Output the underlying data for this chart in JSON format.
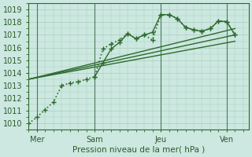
{
  "xlabel": "Pression niveau de la mer( hPa )",
  "ylim": [
    1009.5,
    1019.5
  ],
  "xlim": [
    0,
    80
  ],
  "bg_color": "#cce8e0",
  "grid_color": "#aaccbb",
  "line_color": "#2d6a2d",
  "xtick_positions": [
    3,
    24,
    48,
    72
  ],
  "xtick_labels": [
    "Mer",
    "Sam",
    "Jeu",
    "Ven"
  ],
  "ytick_positions": [
    1010,
    1011,
    1012,
    1013,
    1014,
    1015,
    1016,
    1017,
    1018,
    1019
  ],
  "vline_positions": [
    3,
    24,
    48,
    72
  ],
  "series": [
    {
      "x": [
        0,
        3,
        6,
        9,
        12,
        15,
        18,
        21,
        24,
        27,
        30,
        33,
        36,
        39,
        42,
        45,
        48,
        51,
        54,
        57,
        60,
        63,
        66,
        69,
        72,
        75
      ],
      "y": [
        1010.0,
        1010.5,
        1011.1,
        1011.7,
        1013.0,
        1013.2,
        1013.3,
        1013.5,
        1013.7,
        1015.9,
        1016.3,
        1016.6,
        1017.1,
        1016.7,
        1017.0,
        1016.6,
        1018.6,
        1018.6,
        1018.3,
        1017.6,
        1017.4,
        1017.3,
        1017.5,
        1018.1,
        1018.05,
        1017.0
      ],
      "marker": "+",
      "markersize": 4,
      "linestyle": ":",
      "linewidth": 1.2
    },
    {
      "x": [
        0,
        75
      ],
      "y": [
        1013.5,
        1017.5
      ],
      "marker": null,
      "markersize": 0,
      "linestyle": "-",
      "linewidth": 1.0
    },
    {
      "x": [
        0,
        75
      ],
      "y": [
        1013.5,
        1017.0
      ],
      "marker": null,
      "markersize": 0,
      "linestyle": "-",
      "linewidth": 1.0
    },
    {
      "x": [
        0,
        75
      ],
      "y": [
        1013.5,
        1016.5
      ],
      "marker": null,
      "markersize": 0,
      "linestyle": "-",
      "linewidth": 1.0
    },
    {
      "x": [
        24,
        27,
        30,
        33,
        36,
        39,
        42,
        45,
        48,
        51,
        54,
        57,
        60,
        63,
        66,
        69,
        72,
        75
      ],
      "y": [
        1013.7,
        1014.8,
        1015.9,
        1016.4,
        1017.1,
        1016.7,
        1017.0,
        1017.2,
        1018.6,
        1018.6,
        1018.3,
        1017.6,
        1017.4,
        1017.3,
        1017.5,
        1018.1,
        1018.05,
        1017.0
      ],
      "marker": "+",
      "markersize": 4,
      "linestyle": "-",
      "linewidth": 1.0
    }
  ]
}
